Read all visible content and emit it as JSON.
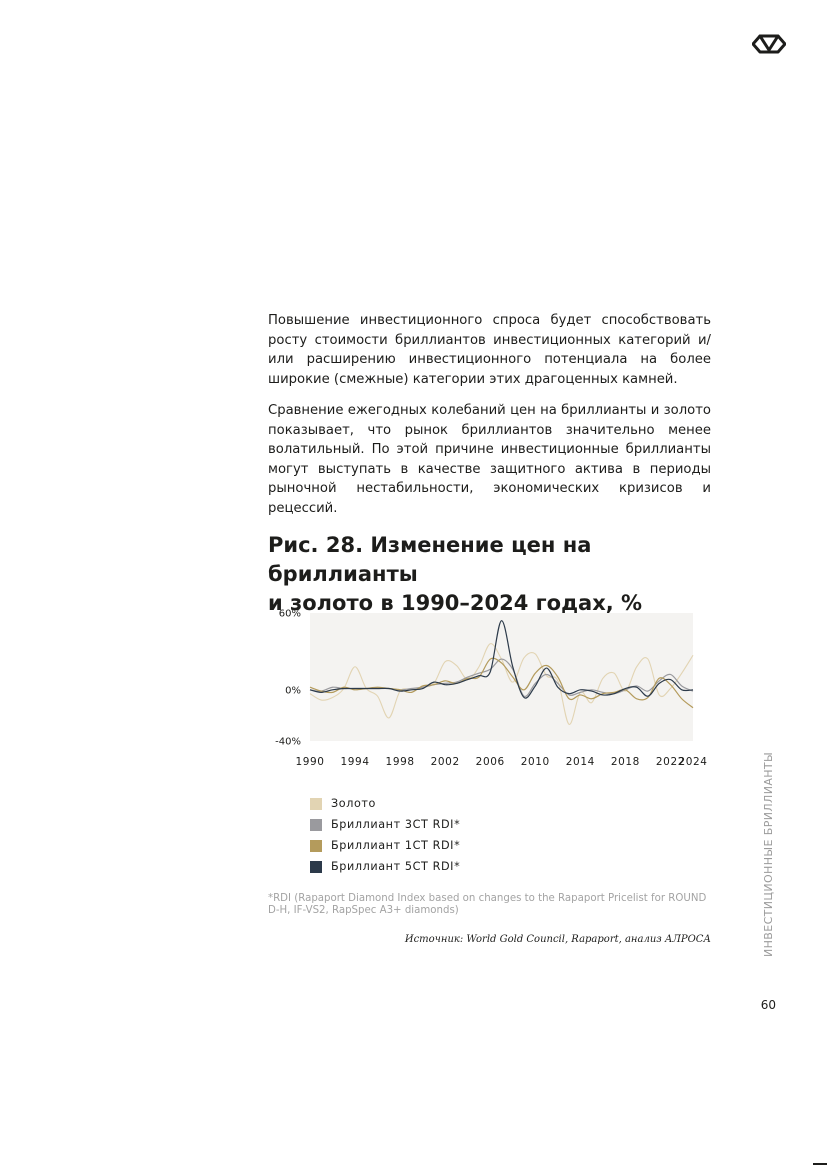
{
  "paragraphs": {
    "p1": "Повышение инвестиционного спроса будет способствовать росту стоимости бриллиантов инвестиционных категорий и/или расширению инвестиционного потенциала на более широкие (смежные) категории этих драгоценных камней.",
    "p2": "Сравнение ежегодных колебаний цен на бриллианты и золото показывает, что рынок бриллиантов значительно менее волатильный. По этой причине инвестиционные бриллианты могут выступать в качестве защитного актива в периоды рыночной нестабильности, экономических кризисов и рецессий."
  },
  "figure_title_line1": "Рис. 28. Изменение цен на бриллианты",
  "figure_title_line2": "и золото в 1990–2024 годах, %",
  "chart_data": {
    "type": "line",
    "x": [
      1990,
      1991,
      1992,
      1993,
      1994,
      1995,
      1996,
      1997,
      1998,
      1999,
      2000,
      2001,
      2002,
      2003,
      2004,
      2005,
      2006,
      2007,
      2008,
      2009,
      2010,
      2011,
      2012,
      2013,
      2014,
      2015,
      2016,
      2017,
      2018,
      2019,
      2020,
      2021,
      2022,
      2023,
      2024
    ],
    "series": [
      {
        "name": "Золото",
        "color": "#e2d4b3",
        "values": [
          -3,
          -8,
          -6,
          1,
          18,
          1,
          -5,
          -22,
          -1,
          0,
          2,
          5,
          22,
          19,
          8,
          18,
          36,
          24,
          6,
          25,
          28,
          11,
          7,
          -27,
          -2,
          -10,
          9,
          13,
          -1,
          18,
          24,
          -4,
          1,
          13,
          27
        ]
      },
      {
        "name": "Бриллиант 3CT RDI*",
        "color": "#9a9a9e",
        "values": [
          0,
          -1,
          2,
          1,
          1,
          1,
          1,
          1,
          0,
          1,
          2,
          4,
          5,
          6,
          10,
          13,
          16,
          24,
          16,
          -5,
          5,
          12,
          5,
          -4,
          -2,
          0,
          -2,
          -3,
          0,
          3,
          -1,
          7,
          12,
          3,
          -1
        ]
      },
      {
        "name": "Бриллиант 1CT RDI*",
        "color": "#b49b5c",
        "values": [
          2,
          -1,
          -2,
          2,
          0,
          1,
          2,
          1,
          0,
          -2,
          3,
          4,
          7,
          5,
          9,
          10,
          24,
          21,
          10,
          0,
          13,
          19,
          10,
          -7,
          -4,
          -7,
          -3,
          -2,
          0,
          -7,
          -6,
          9,
          4,
          -7,
          -14
        ]
      },
      {
        "name": "Бриллиант 5CT RDI*",
        "color": "#2c3a4a",
        "values": [
          0,
          -2,
          0,
          1,
          1,
          1,
          1,
          1,
          -1,
          0,
          1,
          6,
          4,
          5,
          8,
          11,
          14,
          54,
          18,
          -6,
          3,
          17,
          2,
          -3,
          0,
          -1,
          -4,
          -3,
          1,
          2,
          -5,
          5,
          8,
          0,
          0
        ]
      }
    ],
    "ylim": [
      -40,
      60
    ],
    "y_ticks": [
      "60%",
      "0%",
      "-40%"
    ],
    "x_ticks": [
      "1990",
      "1994",
      "1998",
      "2002",
      "2006",
      "2010",
      "2014",
      "2018",
      "2022",
      "2024"
    ],
    "legend_placement": "bottom-left",
    "grid": false
  },
  "legend": {
    "gold": "Золото",
    "d3ct": "Бриллиант 3CT RDI*",
    "d1ct": "Бриллиант 1CT RDI*",
    "d5ct": "Бриллиант 5CT RDI*"
  },
  "footnote": "*RDI (Rapaport Diamond Index based on changes to the Rapaport Pricelist for ROUND D-H, IF-VS2, RapSpec A3+ diamonds)",
  "source": "Источник: World Gold Council, Rapaport, анализ АЛРОСА",
  "side_label": "ИНВЕСТИЦИОННЫЕ БРИЛЛИАНТЫ",
  "page_number": "60",
  "icons": {
    "logo": "alrosa-logo-icon"
  }
}
